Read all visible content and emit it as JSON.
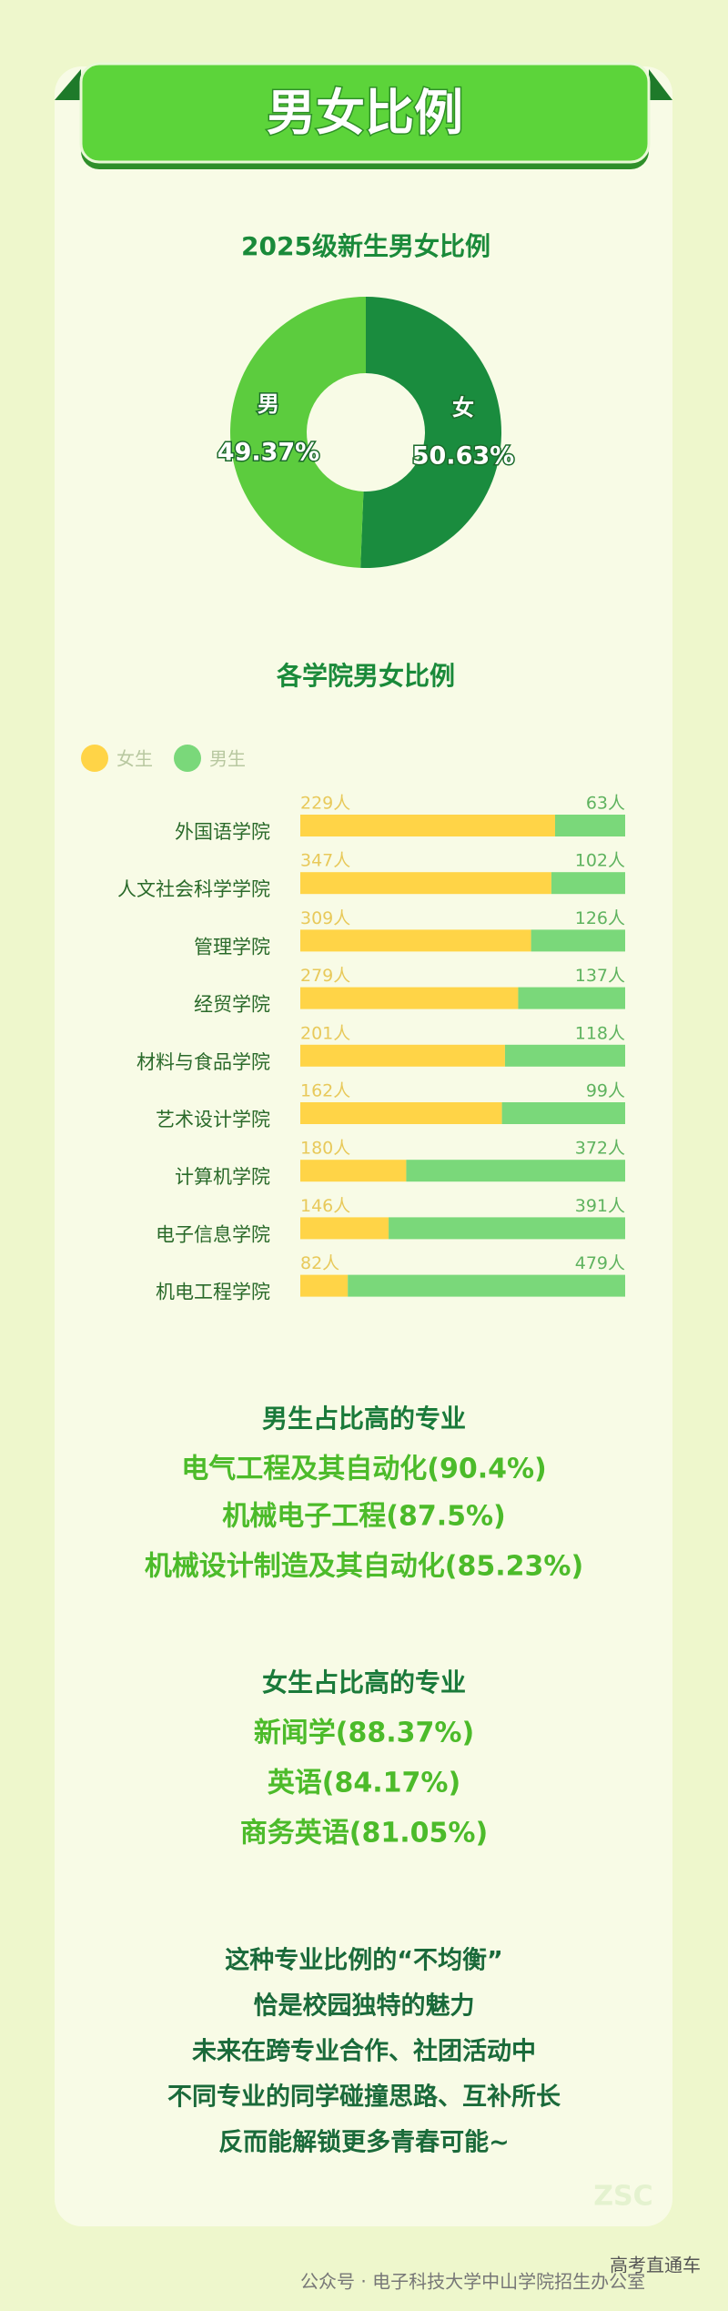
{
  "header": {
    "title": "男女比例"
  },
  "chart_data": [
    {
      "type": "pie",
      "title": "2025级新生男女比例",
      "categories": [
        "女",
        "男"
      ],
      "values": [
        50.63,
        49.37
      ],
      "value_labels": [
        "50.63%",
        "49.37%"
      ],
      "colors": [
        "#1a8c3e",
        "#5ccc3e"
      ],
      "donut": true
    },
    {
      "type": "bar",
      "title": "各学院男女比例",
      "orientation": "horizontal",
      "stacked": "percent",
      "legend": "top-left",
      "categories": [
        "外国语学院",
        "人文社会科学学院",
        "管理学院",
        "经贸学院",
        "材料与食品学院",
        "艺术设计学院",
        "计算机学院",
        "电子信息学院",
        "机电工程学院"
      ],
      "series": [
        {
          "name": "女生",
          "color": "#ffd447",
          "values": [
            229,
            347,
            309,
            279,
            201,
            162,
            180,
            146,
            82
          ],
          "value_labels": [
            "229人",
            "347人",
            "309人",
            "279人",
            "201人",
            "162人",
            "180人",
            "146人",
            "82人"
          ]
        },
        {
          "name": "男生",
          "color": "#7ad87a",
          "values": [
            63,
            102,
            126,
            137,
            118,
            99,
            372,
            391,
            479
          ],
          "value_labels": [
            "63人",
            "102人",
            "126人",
            "137人",
            "118人",
            "99人",
            "372人",
            "391人",
            "479人"
          ]
        }
      ]
    }
  ],
  "sections": [
    {
      "heading": "男生占比高的专业",
      "lines": [
        "电气工程及其自动化(90.4%)",
        "机械电子工程(87.5%)",
        "机械设计制造及其自动化(85.23%)"
      ]
    },
    {
      "heading": "女生占比高的专业",
      "lines": [
        "新闻学(88.37%)",
        "英语(84.17%)",
        "商务英语(81.05%)"
      ]
    }
  ],
  "closing": [
    "这种专业比例的“不均衡”",
    "恰是校园独特的魅力",
    "未来在跨专业合作、社团活动中",
    "不同专业的同学碰撞思路、互补所长",
    "反而能解锁更多青春可能~"
  ],
  "watermark": "ZSC",
  "footer": {
    "source": "公众号 · 电子科技大学中山学院招生办公室",
    "overlay": "高考直通车"
  }
}
